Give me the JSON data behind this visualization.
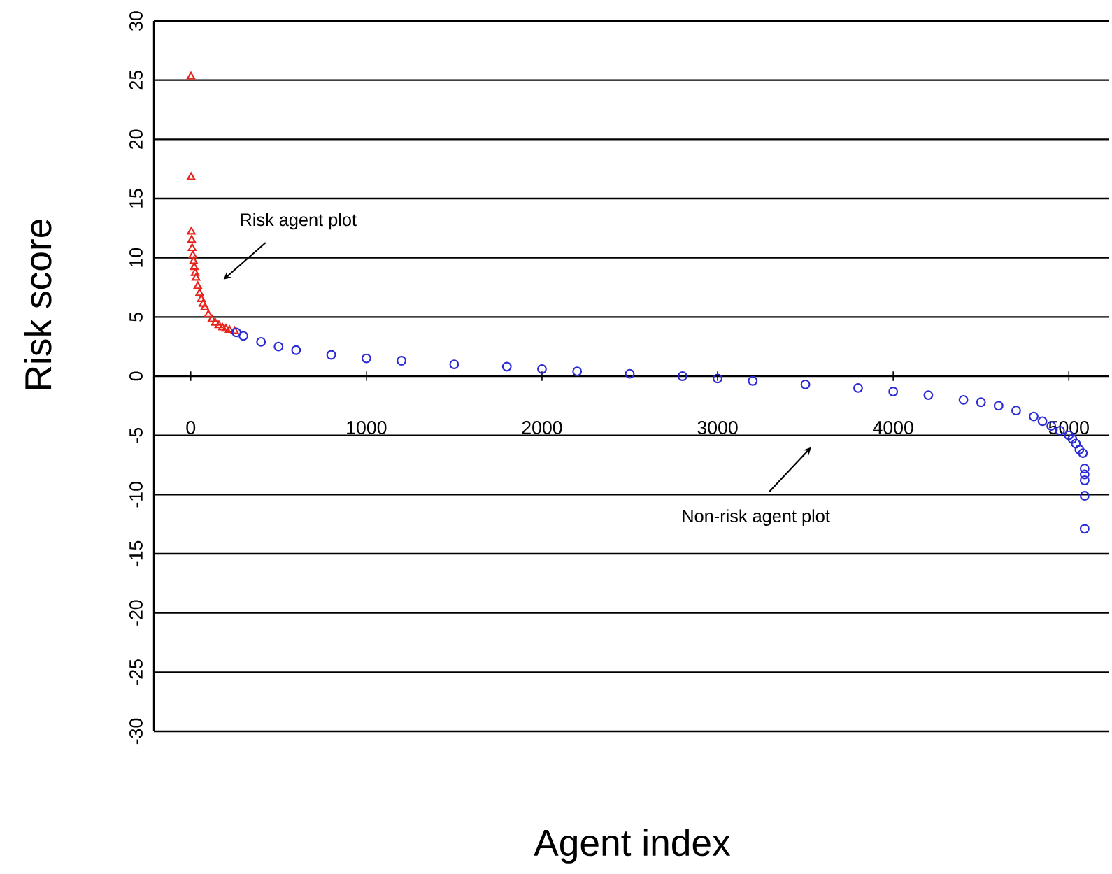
{
  "chart_data": {
    "type": "scatter",
    "xlabel": "Agent index",
    "ylabel": "Risk score",
    "xlim": [
      -210,
      5230
    ],
    "ylim": [
      -30,
      30
    ],
    "xticks": [
      0,
      1000,
      2000,
      3000,
      4000,
      5000
    ],
    "yticks": [
      -30,
      -25,
      -20,
      -15,
      -10,
      -5,
      0,
      5,
      10,
      15,
      20,
      25,
      30
    ],
    "grid": "y",
    "annotations": [
      "Risk agent plot",
      "Non-risk agent plot"
    ],
    "series": [
      {
        "color": "#e8231c",
        "marker": "triangle",
        "x": [
          1,
          2,
          3,
          5,
          8,
          12,
          16,
          20,
          25,
          30,
          40,
          50,
          60,
          70,
          80,
          100,
          120,
          140,
          160,
          180,
          200,
          220,
          250
        ],
        "values": [
          25.3,
          16.8,
          12.2,
          11.5,
          10.8,
          10.2,
          9.7,
          9.2,
          8.7,
          8.3,
          7.6,
          7.0,
          6.5,
          6.1,
          5.8,
          5.2,
          4.8,
          4.5,
          4.3,
          4.1,
          4.0,
          3.9,
          3.8
        ]
      },
      {
        "color": "#2a2ad6",
        "marker": "circle",
        "x": [
          260,
          300,
          400,
          500,
          600,
          800,
          1000,
          1200,
          1500,
          1800,
          2000,
          2200,
          2500,
          2800,
          3000,
          3200,
          3500,
          3800,
          4000,
          4200,
          4400,
          4500,
          4600,
          4700,
          4800,
          4850,
          4900,
          4950,
          5000,
          5020,
          5040,
          5060,
          5080,
          5090,
          5090,
          5090,
          5090,
          5090
        ],
        "values": [
          3.7,
          3.4,
          2.9,
          2.5,
          2.2,
          1.8,
          1.5,
          1.3,
          1.0,
          0.8,
          0.6,
          0.4,
          0.2,
          0.0,
          -0.2,
          -0.4,
          -0.7,
          -1.0,
          -1.3,
          -1.6,
          -2.0,
          -2.2,
          -2.5,
          -2.9,
          -3.4,
          -3.8,
          -4.2,
          -4.6,
          -5.0,
          -5.3,
          -5.7,
          -6.2,
          -6.5,
          -7.8,
          -8.3,
          -8.8,
          -10.1,
          -12.9
        ]
      }
    ]
  }
}
